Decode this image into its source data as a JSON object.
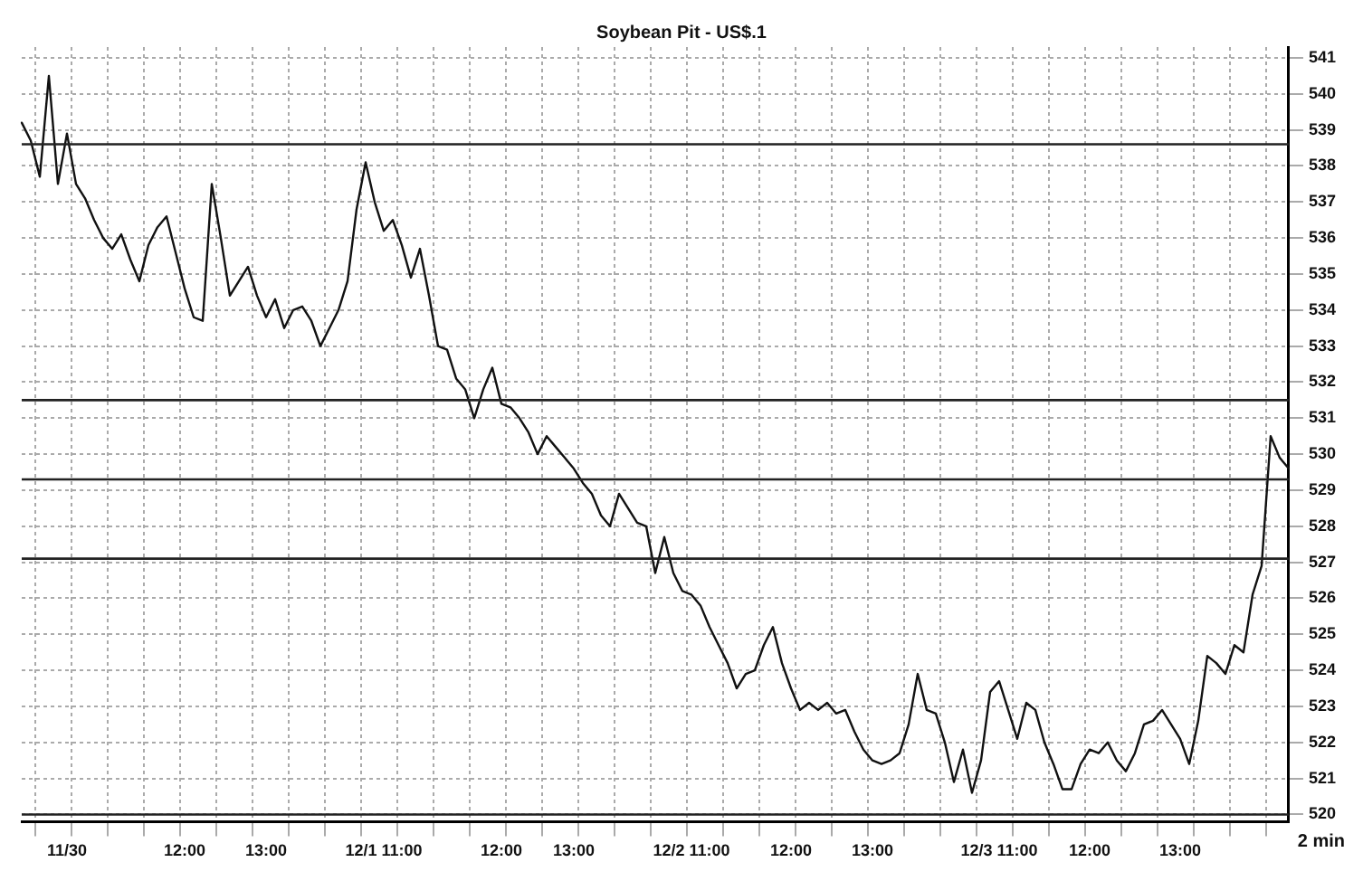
{
  "chart_data": {
    "type": "line",
    "title": "Soybean Pit - US$.1",
    "categories": [
      null,
      null,
      null,
      null,
      null,
      "11/30",
      null,
      null,
      null,
      null,
      null,
      null,
      null,
      null,
      null,
      null,
      null,
      null,
      "12:00",
      null,
      null,
      null,
      null,
      null,
      null,
      null,
      null,
      "13:00",
      null,
      null,
      null,
      null,
      null,
      null,
      null,
      null,
      null,
      null,
      null,
      null,
      "12/1 11:00",
      null,
      null,
      null,
      null,
      null,
      null,
      null,
      null,
      null,
      null,
      null,
      null,
      "12:00",
      null,
      null,
      null,
      null,
      null,
      null,
      null,
      "13:00",
      null,
      null,
      null,
      null,
      null,
      null,
      null,
      null,
      null,
      null,
      null,
      null,
      "12/2 11:00",
      null,
      null,
      null,
      null,
      null,
      null,
      null,
      null,
      null,
      null,
      "12:00",
      null,
      null,
      null,
      null,
      null,
      null,
      null,
      null,
      "13:00",
      null,
      null,
      null,
      null,
      null,
      null,
      null,
      null,
      null,
      null,
      null,
      null,
      null,
      "12/3 11:00",
      null,
      null,
      null,
      null,
      null,
      null,
      null,
      null,
      null,
      "12:00",
      null,
      null,
      null,
      null,
      null,
      null,
      null,
      null,
      null,
      "13:00",
      null,
      null,
      null,
      null,
      null,
      null,
      null,
      null,
      null,
      null,
      null,
      null
    ],
    "series": [
      {
        "color": "#111111",
        "values": [
          539.2,
          538.7,
          537.7,
          540.5,
          537.5,
          538.9,
          537.5,
          537.1,
          536.5,
          536.0,
          535.7,
          536.1,
          535.4,
          534.8,
          535.8,
          536.3,
          536.6,
          535.6,
          534.6,
          533.8,
          533.7,
          537.5,
          536.0,
          534.4,
          534.8,
          535.2,
          534.4,
          533.8,
          534.3,
          533.5,
          534.0,
          534.1,
          533.7,
          533.0,
          533.5,
          534.0,
          534.8,
          536.8,
          538.1,
          537.0,
          536.2,
          536.5,
          535.8,
          534.9,
          535.7,
          534.4,
          533.0,
          532.9,
          532.1,
          531.8,
          531.0,
          531.8,
          532.4,
          531.4,
          531.3,
          531.0,
          530.6,
          530.0,
          530.5,
          530.2,
          529.9,
          529.6,
          529.2,
          528.9,
          528.3,
          528.0,
          528.9,
          528.5,
          528.1,
          528.0,
          526.7,
          527.7,
          526.7,
          526.2,
          526.1,
          525.8,
          525.2,
          524.7,
          524.2,
          523.5,
          523.9,
          524.0,
          524.7,
          525.2,
          524.2,
          523.5,
          522.9,
          523.1,
          522.9,
          523.1,
          522.8,
          522.9,
          522.3,
          521.8,
          521.5,
          521.4,
          521.5,
          521.7,
          522.5,
          523.9,
          522.9,
          522.8,
          522.0,
          520.9,
          521.8,
          520.6,
          521.5,
          523.4,
          523.7,
          522.9,
          522.1,
          523.1,
          522.9,
          522.0,
          521.4,
          520.7,
          520.7,
          521.4,
          521.8,
          521.7,
          522.0,
          521.5,
          521.2,
          521.7,
          522.5,
          522.6,
          522.9,
          522.5,
          522.1,
          521.4,
          522.6,
          524.4,
          524.2,
          523.9,
          524.7,
          524.5,
          526.1,
          526.9,
          530.5,
          529.9,
          529.6
        ]
      }
    ],
    "ylim": [
      519.8,
      541.3
    ],
    "yticks": [
      520,
      521,
      522,
      523,
      524,
      525,
      526,
      527,
      528,
      529,
      530,
      531,
      532,
      533,
      534,
      535,
      536,
      537,
      538,
      539,
      540,
      541
    ],
    "grid": true,
    "legend": false,
    "marker": "none",
    "line_style": "solid",
    "ref_lines": [
      {
        "axis": "y",
        "value": 538.6,
        "color": "#222222"
      },
      {
        "axis": "y",
        "value": 531.5,
        "color": "#222222"
      },
      {
        "axis": "y",
        "value": 529.3,
        "color": "#222222"
      },
      {
        "axis": "y",
        "value": 527.1,
        "color": "#222222"
      },
      {
        "axis": "y",
        "value": 520.0,
        "color": "#222222"
      }
    ],
    "annotations": [
      "2 min"
    ]
  }
}
